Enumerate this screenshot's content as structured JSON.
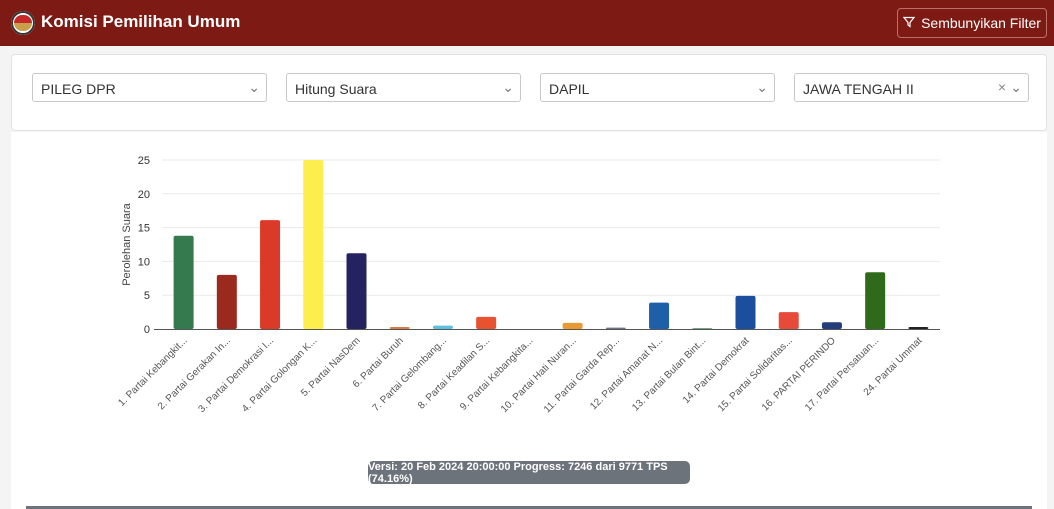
{
  "header": {
    "title": "Komisi Pemilihan Umum",
    "filter_button": "Sembunyikan Filter"
  },
  "filters": [
    {
      "value": "PILEG DPR"
    },
    {
      "value": "Hitung Suara"
    },
    {
      "value": "DAPIL"
    },
    {
      "value": "JAWA TENGAH II",
      "clearable": true
    }
  ],
  "chart_data": {
    "type": "bar",
    "ylabel": "Perolehan Suara",
    "ylim": [
      0,
      25
    ],
    "yticks": [
      0,
      5,
      10,
      15,
      20,
      25
    ],
    "grid": true,
    "categories": [
      "1. Partai Kebangkit...",
      "2. Partai Gerakan In...",
      "3. Partai Demokrasi I...",
      "4. Partai Golongan K...",
      "5. Partai NasDem",
      "6. Partai Buruh",
      "7. Partai Gelombang...",
      "8. Partai Keadilan S...",
      "9. Partai Kebangkita...",
      "10. Partai Hati Nuran...",
      "11. Partai Garda Rep...",
      "12. Partai Amanat N...",
      "13. Partai Bulan Bint...",
      "14. Partai Demokrat",
      "15. Partai Solidaritas...",
      "16. PARTAI PERINDO",
      "17. Partai Persatuan...",
      "24. Partai Ummat"
    ],
    "values": [
      13.8,
      8.0,
      16.1,
      25.0,
      11.2,
      0.3,
      0.5,
      1.8,
      0,
      0.9,
      0.2,
      3.9,
      0.1,
      4.9,
      2.5,
      1.0,
      8.4,
      0.3
    ],
    "colors": [
      "#347a4e",
      "#9b2a1e",
      "#dc3a28",
      "#fdee4d",
      "#24225f",
      "#d97a4a",
      "#5bc0e0",
      "#e8522e",
      "#888888",
      "#e89a35",
      "#6b7280",
      "#1f5fa8",
      "#2a6a3a",
      "#1b4f9e",
      "#e84a3a",
      "#233e7a",
      "#2f6a1a",
      "#222222"
    ]
  },
  "footer": {
    "version_text": "Versi: 20 Feb 2024 20:00:00 Progress: 7246 dari 9771 TPS (74.16%)"
  }
}
